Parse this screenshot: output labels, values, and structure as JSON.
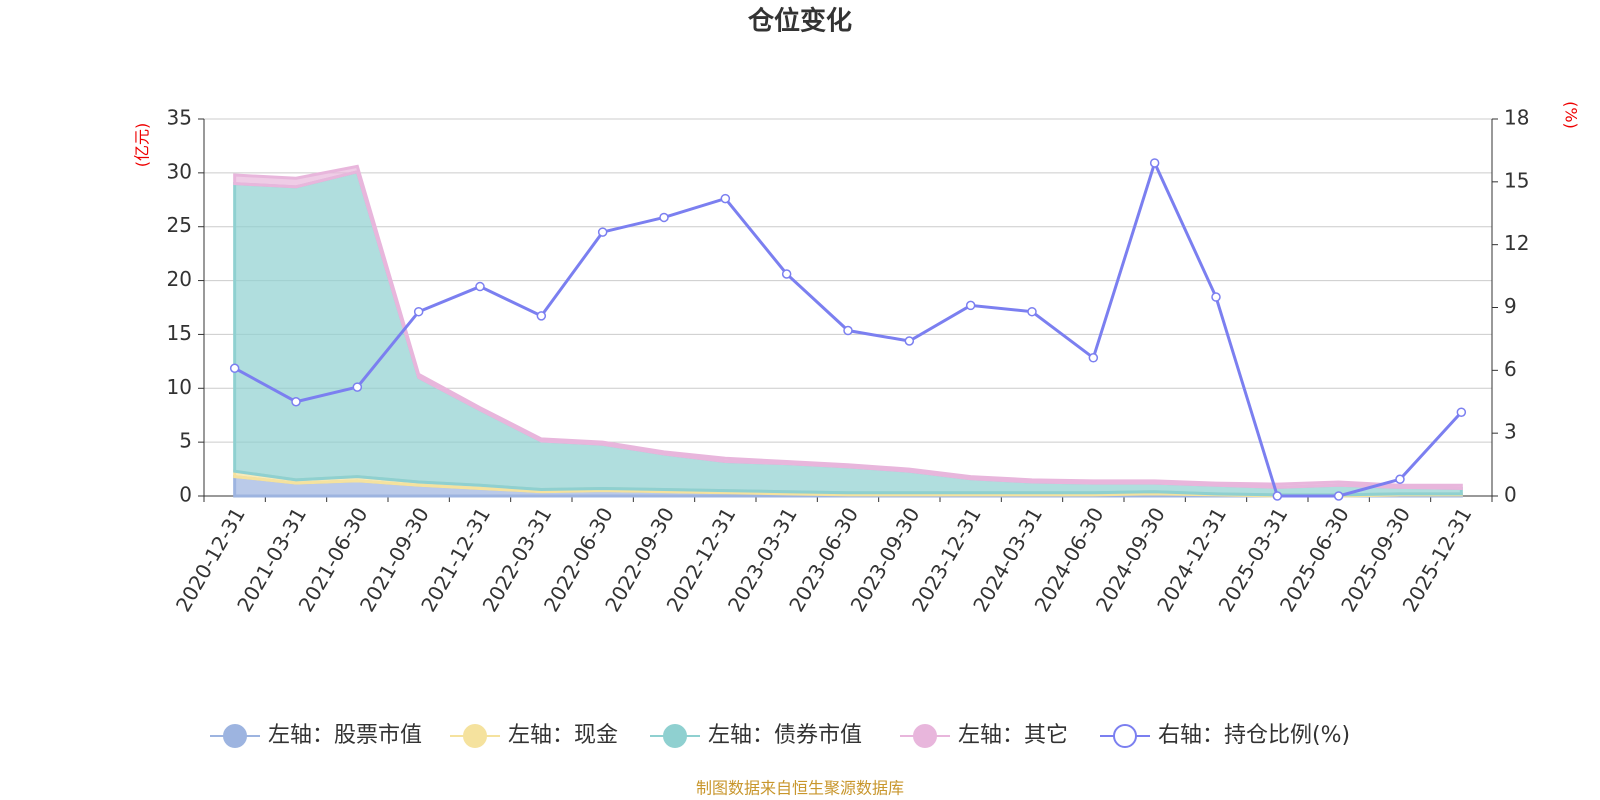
{
  "chart_data": {
    "type": "area_line",
    "title": "仓位变化",
    "y_label": "(亿元)",
    "y2_label": "(%)",
    "source": "制图数据来自恒生聚源数据库",
    "categories": [
      "2020-12-31",
      "2021-03-31",
      "2021-06-30",
      "2021-09-30",
      "2021-12-31",
      "2022-03-31",
      "2022-06-30",
      "2022-09-30",
      "2022-12-31",
      "2023-03-31",
      "2023-06-30",
      "2023-09-30",
      "2023-12-31",
      "2024-03-31",
      "2024-06-30",
      "2024-09-30",
      "2024-12-31",
      "2025-03-31",
      "2025-06-30",
      "2025-09-30",
      "2025-12-31"
    ],
    "ylim": [
      0,
      35
    ],
    "yticks": [
      0,
      5,
      10,
      15,
      20,
      25,
      30,
      35
    ],
    "y2lim": [
      0,
      18
    ],
    "y2ticks": [
      0,
      3,
      6,
      9,
      12,
      15,
      18
    ],
    "grid": true,
    "stacked": true,
    "series": [
      {
        "name": "左轴：股票市值",
        "color": "#9db4e0",
        "values": [
          1.8,
          1.2,
          1.4,
          1.0,
          0.7,
          0.4,
          0.5,
          0.4,
          0.3,
          0.2,
          0.1,
          0.1,
          0.1,
          0.1,
          0.1,
          0.2,
          0.1,
          0,
          0,
          0.1,
          0.1
        ]
      },
      {
        "name": "左轴：现金",
        "color": "#f5e29e",
        "values": [
          0.5,
          0.3,
          0.4,
          0.3,
          0.3,
          0.2,
          0.2,
          0.2,
          0.2,
          0.2,
          0.2,
          0.2,
          0.2,
          0.2,
          0.2,
          0.2,
          0.1,
          0.1,
          0.1,
          0.1,
          0.1
        ]
      },
      {
        "name": "左轴：债券市值",
        "color": "#8fd0d0",
        "values": [
          26.7,
          27.2,
          28.3,
          9.7,
          7.0,
          4.5,
          4.1,
          3.3,
          2.7,
          2.6,
          2.4,
          2.0,
          1.3,
          1.0,
          0.9,
          0.8,
          0.8,
          0.7,
          0.9,
          0.6,
          0.5
        ]
      },
      {
        "name": "左轴：其它",
        "color": "#e8b6dc",
        "values": [
          0.8,
          0.8,
          0.5,
          0.3,
          0.2,
          0.2,
          0.2,
          0.2,
          0.3,
          0.2,
          0.2,
          0.2,
          0.2,
          0.2,
          0.2,
          0.2,
          0.2,
          0.3,
          0.3,
          0.2,
          0.3
        ]
      },
      {
        "name": "右轴：持仓比例(%)",
        "color": "#7b7ff0",
        "axis": "y2",
        "values": [
          6.1,
          4.5,
          5.2,
          8.8,
          10.0,
          8.6,
          12.6,
          13.3,
          14.2,
          10.6,
          7.9,
          7.4,
          9.1,
          8.8,
          6.6,
          15.9,
          9.5,
          0,
          0,
          0.8,
          4.0
        ]
      }
    ]
  }
}
